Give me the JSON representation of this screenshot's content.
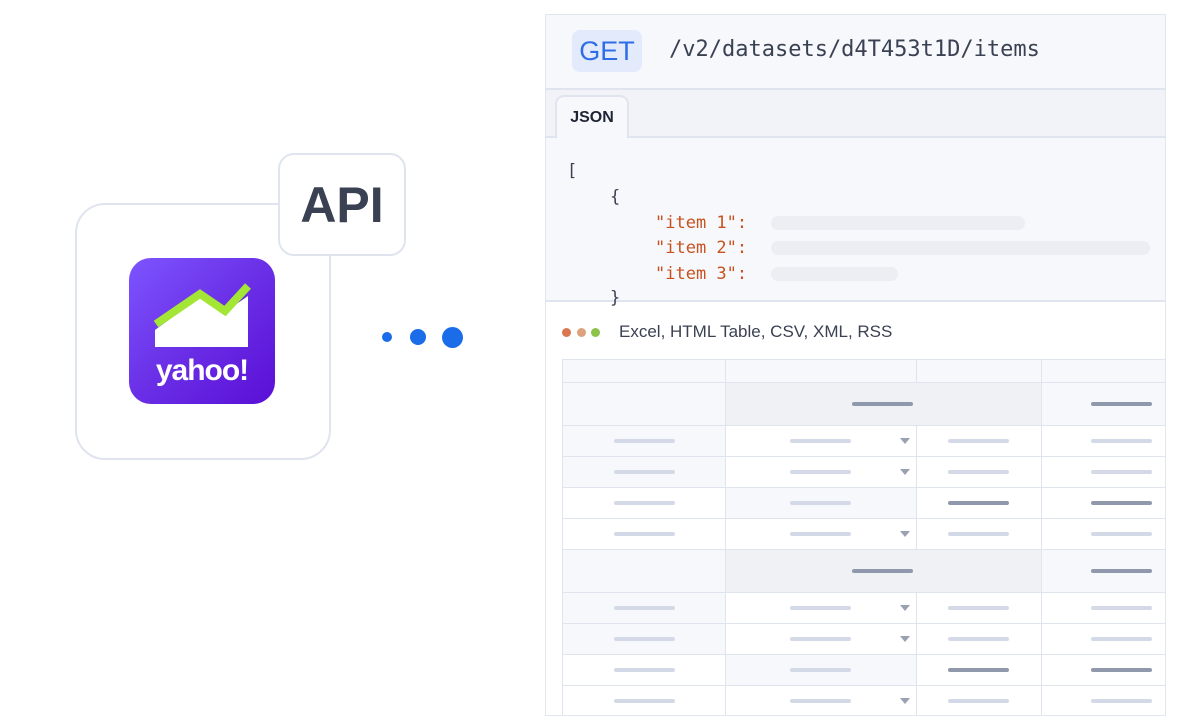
{
  "logo": {
    "badge": "API",
    "brand": "yahoo!",
    "brand_colors": {
      "start": "#7d55ff",
      "end": "#5a0fd6",
      "line": "#a3e635"
    }
  },
  "connector": {
    "dots": 3,
    "color": "#1a6ce8"
  },
  "request": {
    "method": "GET",
    "path": "/v2/datasets/d4T453t1D/items"
  },
  "tabs": [
    {
      "label": "JSON",
      "active": true
    }
  ],
  "json_preview": {
    "open_bracket": "[",
    "open_brace": "{",
    "keys": [
      "\"item 1\":",
      "\"item 2\":",
      "\"item 3\":"
    ],
    "close_brace": "}"
  },
  "formats": {
    "label": "Excel, HTML Table, CSV, XML, RSS",
    "dot_colors": [
      "#d9774f",
      "#dca27d",
      "#8bc34a"
    ]
  },
  "table": {
    "columns": 4,
    "rows": [
      "header",
      "group",
      "dropdown",
      "dropdown",
      "highlight",
      "dropdown-plain",
      "group",
      "dropdown",
      "dropdown",
      "highlight",
      "dropdown-plain"
    ]
  }
}
